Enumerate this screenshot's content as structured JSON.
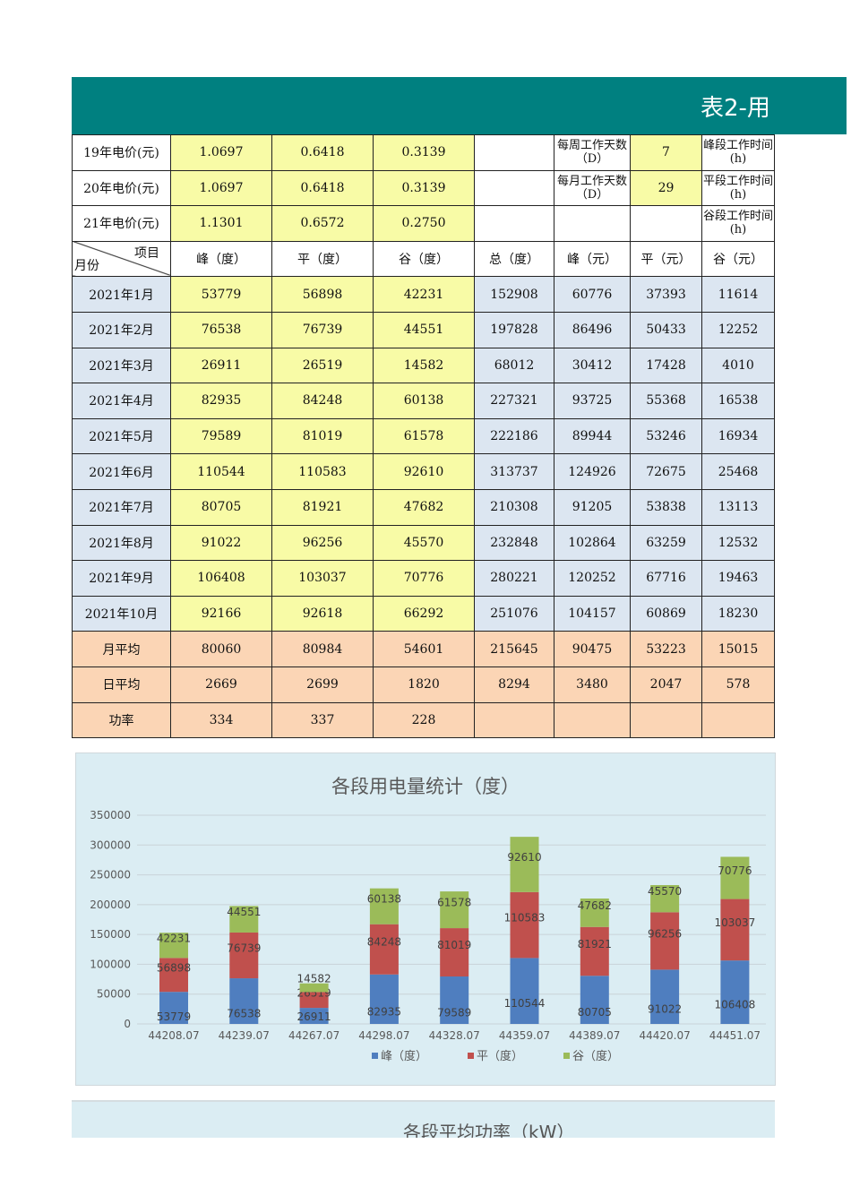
{
  "banner": {
    "title": "表2-用"
  },
  "price_rows": [
    {
      "label": "19年电价(元)",
      "peak": "1.0697",
      "flat": "0.6418",
      "valley": "0.3139",
      "info_label": "每周工作天数（D）",
      "info_value": "7",
      "right_label": "峰段工作时间(h)"
    },
    {
      "label": "20年电价(元)",
      "peak": "1.0697",
      "flat": "0.6418",
      "valley": "0.3139",
      "info_label": "每月工作天数（D）",
      "info_value": "29",
      "right_label": "平段工作时间(h)"
    },
    {
      "label": "21年电价(元)",
      "peak": "1.1301",
      "flat": "0.6572",
      "valley": "0.2750",
      "info_label": "",
      "info_value": "",
      "right_label": "谷段工作时间(h)"
    }
  ],
  "header": {
    "diag_top": "项目",
    "diag_bottom": "月份",
    "cols": [
      "峰（度）",
      "平（度）",
      "谷（度）",
      "总（度）",
      "峰（元）",
      "平（元）",
      "谷（元）"
    ]
  },
  "months": [
    [
      "2021年1月",
      "53779",
      "56898",
      "42231",
      "152908",
      "60776",
      "37393",
      "11614"
    ],
    [
      "2021年2月",
      "76538",
      "76739",
      "44551",
      "197828",
      "86496",
      "50433",
      "12252"
    ],
    [
      "2021年3月",
      "26911",
      "26519",
      "14582",
      "68012",
      "30412",
      "17428",
      "4010"
    ],
    [
      "2021年4月",
      "82935",
      "84248",
      "60138",
      "227321",
      "93725",
      "55368",
      "16538"
    ],
    [
      "2021年5月",
      "79589",
      "81019",
      "61578",
      "222186",
      "89944",
      "53246",
      "16934"
    ],
    [
      "2021年6月",
      "110544",
      "110583",
      "92610",
      "313737",
      "124926",
      "72675",
      "25468"
    ],
    [
      "2021年7月",
      "80705",
      "81921",
      "47682",
      "210308",
      "91205",
      "53838",
      "13113"
    ],
    [
      "2021年8月",
      "91022",
      "96256",
      "45570",
      "232848",
      "102864",
      "63259",
      "12532"
    ],
    [
      "2021年9月",
      "106408",
      "103037",
      "70776",
      "280221",
      "120252",
      "67716",
      "19463"
    ],
    [
      "2021年10月",
      "92166",
      "92618",
      "66292",
      "251076",
      "104157",
      "60869",
      "18230"
    ]
  ],
  "summary": [
    [
      "月平均",
      "80060",
      "80984",
      "54601",
      "215645",
      "90475",
      "53223",
      "15015"
    ],
    [
      "日平均",
      "2669",
      "2699",
      "1820",
      "8294",
      "3480",
      "2047",
      "578"
    ],
    [
      "功率",
      "334",
      "337",
      "228",
      "",
      "",
      "",
      ""
    ]
  ],
  "chart_data": {
    "type": "bar",
    "stacked": true,
    "title": "各段用电量统计（度）",
    "categories": [
      "44208.07",
      "44239.07",
      "44267.07",
      "44298.07",
      "44328.07",
      "44359.07",
      "44389.07",
      "44420.07",
      "44451.07"
    ],
    "yticks": [
      "0",
      "50000",
      "100000",
      "150000",
      "200000",
      "250000",
      "300000",
      "350000"
    ],
    "ylim": [
      0,
      350000
    ],
    "series": [
      {
        "name": "峰（度）",
        "color": "#4f7ebf",
        "values": [
          53779,
          76538,
          26911,
          82935,
          79589,
          110544,
          80705,
          91022,
          106408
        ]
      },
      {
        "name": "平（度）",
        "color": "#c0504d",
        "values": [
          56898,
          76739,
          26519,
          84248,
          81019,
          110583,
          81921,
          96256,
          103037
        ]
      },
      {
        "name": "谷（度）",
        "color": "#9bbb59",
        "values": [
          42231,
          44551,
          14582,
          60138,
          61578,
          92610,
          47682,
          45570,
          70776
        ]
      }
    ],
    "legend": "bottom"
  },
  "chart2": {
    "title": "各段平均功率（kW）"
  }
}
